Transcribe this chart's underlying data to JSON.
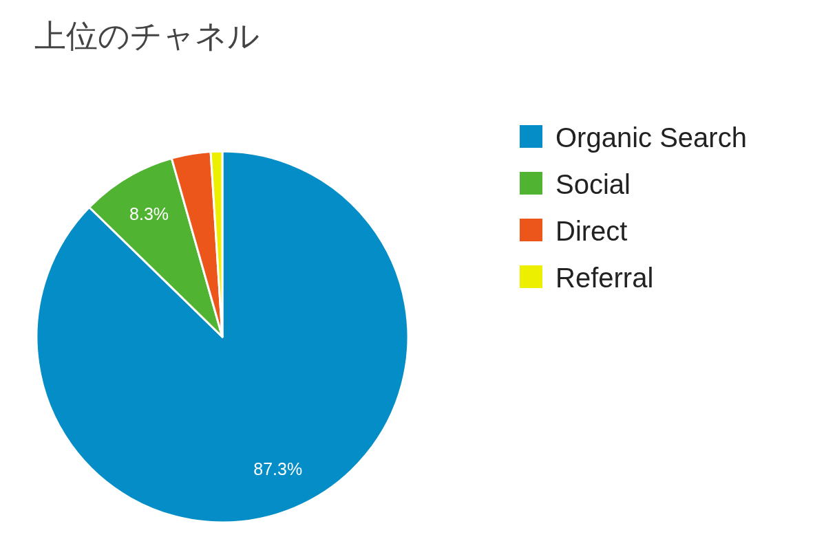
{
  "chart_data": {
    "type": "pie",
    "title": "上位のチャネル",
    "categories": [
      "Organic Search",
      "Social",
      "Direct",
      "Referral"
    ],
    "values": [
      87.3,
      8.3,
      3.4,
      1.0
    ],
    "colors": [
      "#058dc7",
      "#50b432",
      "#ed561b",
      "#edef00"
    ],
    "value_labels": [
      "87.3%",
      "8.3%",
      null,
      null
    ],
    "legend": "right"
  }
}
